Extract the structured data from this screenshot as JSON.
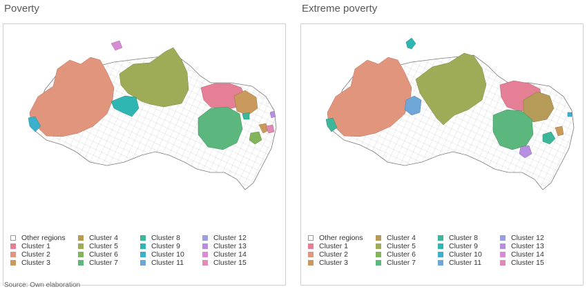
{
  "panels": [
    {
      "title": "Poverty",
      "legend": [
        {
          "label": "Other regions",
          "color": "#ffffff"
        },
        {
          "label": "Cluster 1",
          "color": "#e57f96"
        },
        {
          "label": "Cluster 2",
          "color": "#e2957d"
        },
        {
          "label": "Cluster 3",
          "color": "#c99a5b"
        },
        {
          "label": "Cluster 4",
          "color": "#b59a58"
        },
        {
          "label": "Cluster 5",
          "color": "#9eab57"
        },
        {
          "label": "Cluster 6",
          "color": "#82b45c"
        },
        {
          "label": "Cluster 7",
          "color": "#5cb77e"
        },
        {
          "label": "Cluster 8",
          "color": "#3db79a"
        },
        {
          "label": "Cluster 9",
          "color": "#2fb6b3"
        },
        {
          "label": "Cluster 10",
          "color": "#3bb0cd"
        },
        {
          "label": "Cluster 11",
          "color": "#6fa6d8"
        },
        {
          "label": "Cluster 12",
          "color": "#9aa0dd"
        },
        {
          "label": "Cluster 13",
          "color": "#b68fe0"
        },
        {
          "label": "Cluster 14",
          "color": "#d98cd6"
        },
        {
          "label": "Cluster 15",
          "color": "#e18ab5"
        }
      ]
    },
    {
      "title": "Extreme poverty",
      "legend": [
        {
          "label": "Other regions",
          "color": "#ffffff"
        },
        {
          "label": "Cluster 1",
          "color": "#e57f96"
        },
        {
          "label": "Cluster 2",
          "color": "#e2957d"
        },
        {
          "label": "Cluster 3",
          "color": "#c99a5b"
        },
        {
          "label": "Cluster 4",
          "color": "#b59a58"
        },
        {
          "label": "Cluster 5",
          "color": "#9eab57"
        },
        {
          "label": "Cluster 6",
          "color": "#82b45c"
        },
        {
          "label": "Cluster 7",
          "color": "#5cb77e"
        },
        {
          "label": "Cluster 8",
          "color": "#3db79a"
        },
        {
          "label": "Cluster 9",
          "color": "#2fb6b3"
        },
        {
          "label": "Cluster 10",
          "color": "#3bb0cd"
        },
        {
          "label": "Cluster 11",
          "color": "#6fa6d8"
        },
        {
          "label": "Cluster 12",
          "color": "#9aa0dd"
        },
        {
          "label": "Cluster 13",
          "color": "#b68fe0"
        },
        {
          "label": "Cluster 14",
          "color": "#d98cd6"
        },
        {
          "label": "Cluster 15",
          "color": "#e18ab5"
        }
      ]
    }
  ],
  "source": "Source: Own elaboration"
}
